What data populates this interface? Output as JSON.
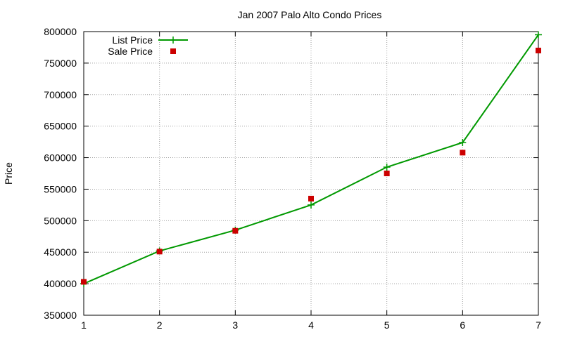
{
  "chart_data": {
    "type": "line",
    "title": "Jan 2007 Palo Alto Condo Prices",
    "xlabel": "",
    "ylabel": "Price",
    "x": [
      1,
      2,
      3,
      4,
      5,
      6,
      7
    ],
    "xlim": [
      1,
      7
    ],
    "ylim": [
      350000,
      800000
    ],
    "xticks": [
      "1",
      "2",
      "3",
      "4",
      "5",
      "6",
      "7"
    ],
    "yticks": [
      "350000",
      "400000",
      "450000",
      "500000",
      "550000",
      "600000",
      "650000",
      "700000",
      "750000",
      "800000"
    ],
    "grid": true,
    "legend_position": "top-left",
    "series": [
      {
        "name": "List Price",
        "style": "linespoints",
        "marker": "plus",
        "color": "#009900",
        "values": [
          400000,
          452000,
          485000,
          525000,
          585000,
          624000,
          795000
        ]
      },
      {
        "name": "Sale Price",
        "style": "points",
        "marker": "square",
        "color": "#cc0000",
        "values": [
          403000,
          451000,
          484000,
          535000,
          575000,
          608000,
          770000
        ]
      }
    ]
  }
}
